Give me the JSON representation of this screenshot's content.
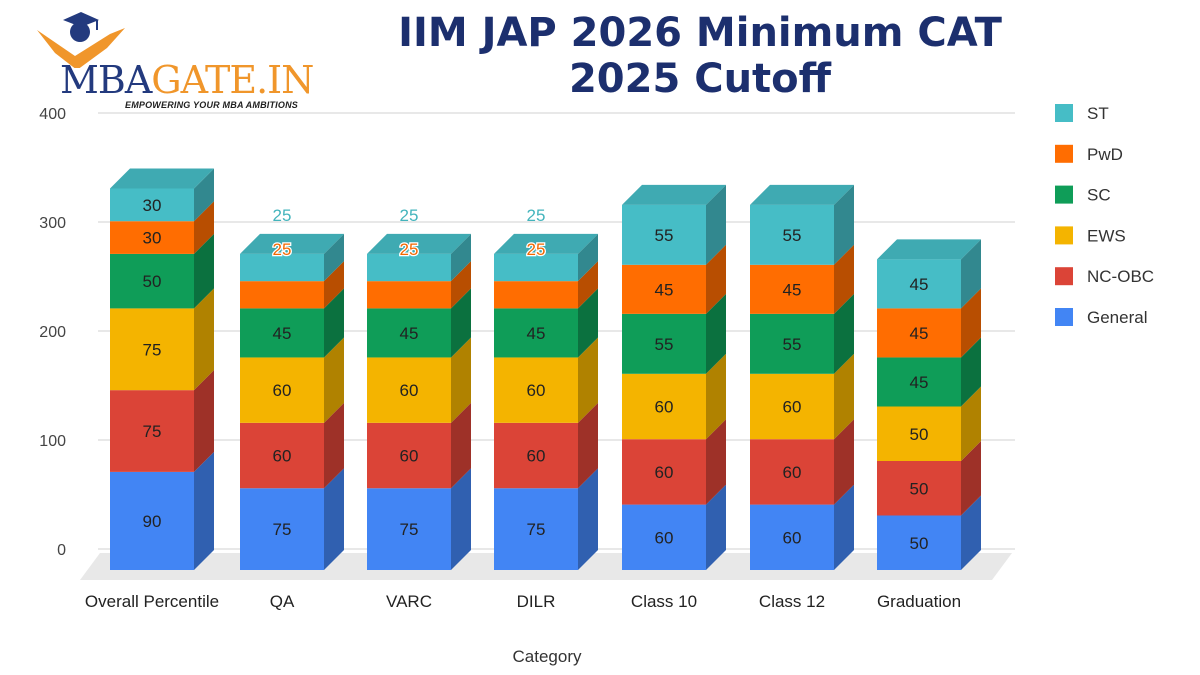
{
  "logo": {
    "text_a": "MBA",
    "text_b": "GATE.IN",
    "tagline": "EMPOWERING YOUR MBA AMBITIONS"
  },
  "chart_data": {
    "type": "bar",
    "stacked": true,
    "three_d": true,
    "title": "IIM JAP 2026 Minimum CAT 2025 Cutoff",
    "xlabel": "Category",
    "ylabel": "",
    "ylim": [
      0,
      400
    ],
    "yticks": [
      0,
      100,
      200,
      300,
      400
    ],
    "grid": true,
    "legend_position": "right",
    "categories": [
      "Overall Percentile",
      "QA",
      "VARC",
      "DILR",
      "Class 10",
      "Class 12",
      "Graduation"
    ],
    "series": [
      {
        "name": "General",
        "color": "#4285F4",
        "values": [
          90,
          75,
          75,
          75,
          60,
          60,
          50
        ]
      },
      {
        "name": "NC-OBC",
        "color": "#DB4437",
        "values": [
          75,
          60,
          60,
          60,
          60,
          60,
          50
        ]
      },
      {
        "name": "EWS",
        "color": "#F4B400",
        "values": [
          75,
          60,
          60,
          60,
          60,
          60,
          50
        ]
      },
      {
        "name": "SC",
        "color": "#0F9D58",
        "values": [
          50,
          45,
          45,
          45,
          55,
          55,
          45
        ]
      },
      {
        "name": "PwD",
        "color": "#FF6D01",
        "values": [
          30,
          25,
          25,
          25,
          45,
          45,
          45
        ]
      },
      {
        "name": "ST",
        "color": "#46BDC6",
        "values": [
          30,
          25,
          25,
          25,
          55,
          55,
          45
        ]
      }
    ]
  }
}
